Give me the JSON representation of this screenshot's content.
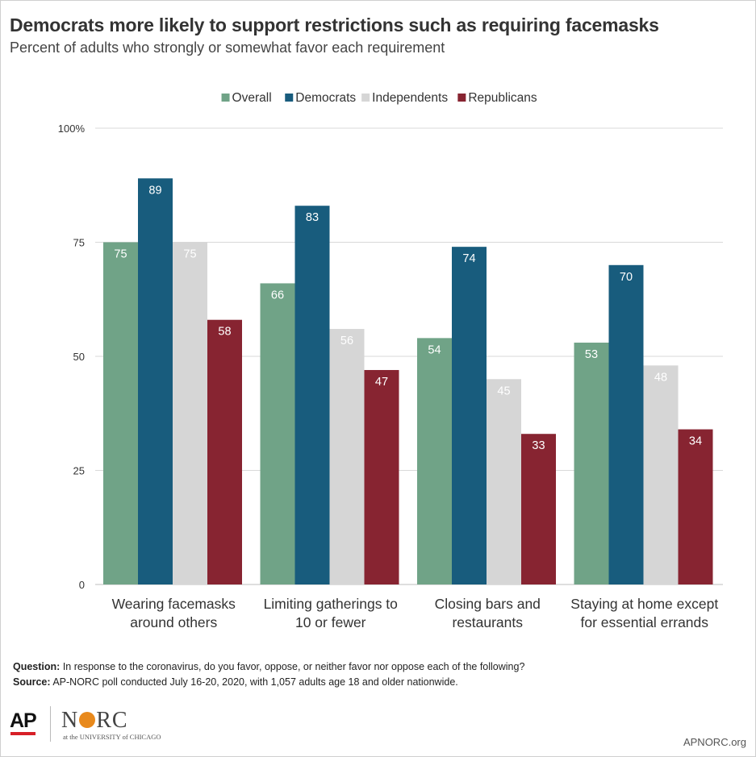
{
  "title": "Democrats more likely to support restrictions such as requiring facemasks",
  "subtitle": "Percent of adults who strongly or somewhat favor each requirement",
  "chart_data": {
    "type": "bar",
    "categories": [
      [
        "Wearing facemasks",
        "around others"
      ],
      [
        "Limiting gatherings to",
        "10 or fewer"
      ],
      [
        "Closing bars and",
        "restaurants"
      ],
      [
        "Staying at home except",
        "for essential errands"
      ]
    ],
    "series": [
      {
        "name": "Overall",
        "color": "#70a387",
        "label_color": "#ffffff",
        "values": [
          75,
          66,
          54,
          53
        ]
      },
      {
        "name": "Democrats",
        "color": "#185c7d",
        "label_color": "#ffffff",
        "values": [
          89,
          83,
          74,
          70
        ]
      },
      {
        "name": "Independents",
        "color": "#d6d6d6",
        "label_color": "#ffffff",
        "values": [
          75,
          56,
          45,
          48
        ]
      },
      {
        "name": "Republicans",
        "color": "#872431",
        "label_color": "#ffffff",
        "values": [
          58,
          47,
          33,
          34
        ]
      }
    ],
    "yticks": [
      "0",
      "25",
      "50",
      "75",
      "100%"
    ],
    "ytick_values": [
      0,
      25,
      50,
      75,
      100
    ],
    "ylim": [
      0,
      100
    ],
    "grid": true,
    "legend_position": "top"
  },
  "notes": {
    "question_label": "Question:",
    "question_text": "In response to the coronavirus, do you favor, oppose, or neither favor nor oppose each of the following?",
    "source_label": "Source:",
    "source_text": "AP-NORC poll conducted July 16-20, 2020,  with 1,057  adults age 18 and older nationwide."
  },
  "logos": {
    "ap": "AP",
    "norc_left": "N",
    "norc_right": "RC",
    "norc_sub": "at the UNIVERSITY of CHICAGO"
  },
  "site": "APNORC.org"
}
